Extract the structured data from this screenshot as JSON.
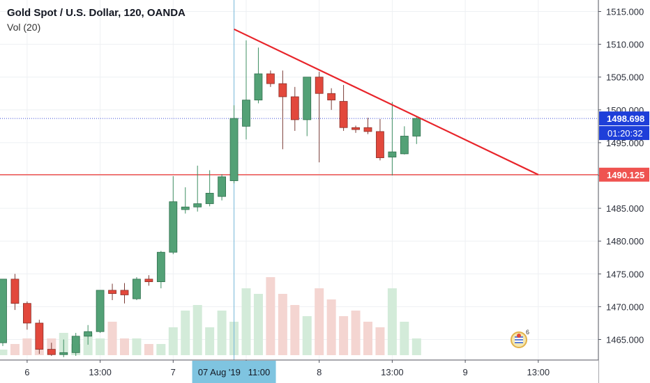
{
  "header": {
    "symbol_title": "Gold Spot / U.S. Dollar, 120, OANDA",
    "indicator": "Vol (20)"
  },
  "colors": {
    "up": "#53a176",
    "up_body": "#3f8f63",
    "down": "#e2483c",
    "grid": "#eef0f3",
    "last_price_line": "#3f4fd8",
    "last_price_badge": "#1e3fd9",
    "support_line": "#ef5350",
    "trend_line": "#e8242a",
    "crosshair": "#76b7d9",
    "time_highlight": "#7fc4e0",
    "vol_up": "#d3ebd9",
    "vol_down": "#f4d5d1"
  },
  "chart_data": {
    "type": "candlestick",
    "symbol": "Gold Spot / U.S. Dollar",
    "interval": "120",
    "source": "OANDA",
    "y_axis": {
      "ticks": [
        "1465.000",
        "1470.000",
        "1475.000",
        "1480.000",
        "1485.000",
        "1490.000",
        "1495.000",
        "1500.000",
        "1505.000",
        "1510.000",
        "1515.000"
      ],
      "range": [
        1462.0,
        1517.0
      ]
    },
    "x_axis": {
      "ticks": [
        {
          "label": "6",
          "bar": 2
        },
        {
          "label": "13:00",
          "bar": 8
        },
        {
          "label": "7",
          "bar": 14
        },
        {
          "label": "13:00",
          "bar": 20
        },
        {
          "label": "8",
          "bar": 26
        },
        {
          "label": "13:00",
          "bar": 32
        },
        {
          "label": "9",
          "bar": 38
        },
        {
          "label": "13:00",
          "bar": 44
        }
      ],
      "highlight": {
        "label": "07 Aug '19   11:00",
        "bar": 19
      }
    },
    "candles": [
      {
        "o": 1464.5,
        "h": 1474.2,
        "l": 1464.0,
        "c": 1474.2
      },
      {
        "o": 1474.2,
        "h": 1475.0,
        "l": 1469.5,
        "c": 1470.5
      },
      {
        "o": 1470.5,
        "h": 1470.8,
        "l": 1466.5,
        "c": 1467.5
      },
      {
        "o": 1467.5,
        "h": 1468.0,
        "l": 1462.8,
        "c": 1463.5
      },
      {
        "o": 1463.5,
        "h": 1464.5,
        "l": 1462.5,
        "c": 1462.7
      },
      {
        "o": 1462.7,
        "h": 1465.0,
        "l": 1462.3,
        "c": 1463.0
      },
      {
        "o": 1463.0,
        "h": 1466.0,
        "l": 1462.5,
        "c": 1465.5
      },
      {
        "o": 1465.5,
        "h": 1467.2,
        "l": 1464.2,
        "c": 1466.2
      },
      {
        "o": 1466.2,
        "h": 1472.5,
        "l": 1466.0,
        "c": 1472.5
      },
      {
        "o": 1472.5,
        "h": 1473.5,
        "l": 1471.0,
        "c": 1472.0
      },
      {
        "o": 1472.5,
        "h": 1473.6,
        "l": 1470.5,
        "c": 1471.8
      },
      {
        "o": 1471.2,
        "h": 1474.5,
        "l": 1471.0,
        "c": 1474.2
      },
      {
        "o": 1474.2,
        "h": 1474.8,
        "l": 1473.2,
        "c": 1473.8
      },
      {
        "o": 1473.8,
        "h": 1478.5,
        "l": 1472.8,
        "c": 1478.3
      },
      {
        "o": 1478.3,
        "h": 1489.9,
        "l": 1478.0,
        "c": 1486.0
      },
      {
        "o": 1484.8,
        "h": 1488.2,
        "l": 1484.2,
        "c": 1485.2
      },
      {
        "o": 1485.2,
        "h": 1491.5,
        "l": 1484.5,
        "c": 1485.7
      },
      {
        "o": 1485.7,
        "h": 1490.8,
        "l": 1485.3,
        "c": 1487.3
      },
      {
        "o": 1486.8,
        "h": 1490.2,
        "l": 1486.2,
        "c": 1489.8
      },
      {
        "o": 1489.2,
        "h": 1500.7,
        "l": 1488.8,
        "c": 1498.7
      },
      {
        "o": 1497.5,
        "h": 1510.6,
        "l": 1495.5,
        "c": 1501.5
      },
      {
        "o": 1501.5,
        "h": 1509.5,
        "l": 1501.0,
        "c": 1505.5
      },
      {
        "o": 1505.5,
        "h": 1506.0,
        "l": 1503.5,
        "c": 1504.0
      },
      {
        "o": 1504.0,
        "h": 1506.0,
        "l": 1494.0,
        "c": 1502.0
      },
      {
        "o": 1502.0,
        "h": 1503.5,
        "l": 1496.8,
        "c": 1498.5
      },
      {
        "o": 1498.5,
        "h": 1505.0,
        "l": 1496.0,
        "c": 1505.0
      },
      {
        "o": 1505.0,
        "h": 1505.8,
        "l": 1492.0,
        "c": 1502.5
      },
      {
        "o": 1502.5,
        "h": 1503.3,
        "l": 1500.0,
        "c": 1501.5
      },
      {
        "o": 1501.3,
        "h": 1503.8,
        "l": 1496.8,
        "c": 1497.3
      },
      {
        "o": 1497.3,
        "h": 1497.6,
        "l": 1496.5,
        "c": 1497.0
      },
      {
        "o": 1497.3,
        "h": 1498.8,
        "l": 1496.3,
        "c": 1496.7
      },
      {
        "o": 1496.7,
        "h": 1498.6,
        "l": 1492.3,
        "c": 1492.7
      },
      {
        "o": 1492.8,
        "h": 1501.2,
        "l": 1490.0,
        "c": 1493.6
      },
      {
        "o": 1493.3,
        "h": 1497.5,
        "l": 1493.2,
        "c": 1496.0
      },
      {
        "o": 1496.0,
        "h": 1498.9,
        "l": 1494.8,
        "c": 1498.7
      }
    ],
    "volume": [
      1,
      2,
      3,
      1,
      3,
      4,
      2,
      4,
      3,
      6,
      3,
      3,
      2,
      2,
      5,
      8,
      9,
      5,
      8,
      6,
      12,
      11,
      14,
      11,
      9,
      7,
      12,
      10,
      7,
      8,
      6,
      5,
      12,
      6,
      3
    ],
    "annotations": {
      "last_price": {
        "value": 1498.698,
        "label": "1498.698",
        "countdown": "01:20:32"
      },
      "support_level": {
        "value": 1490.125,
        "label": "1490.125"
      },
      "trend_line": {
        "from": {
          "bar": 19,
          "price": 1512.3
        },
        "to": {
          "bar": 44,
          "price": 1490.125
        }
      },
      "crosshair_bar": 19
    }
  }
}
